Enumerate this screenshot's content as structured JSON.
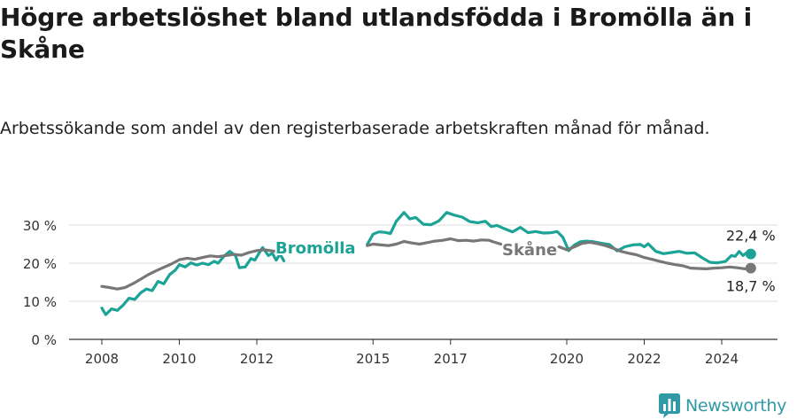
{
  "title": "Högre arbetslöshet bland utlandsfödda i Bromölla än i Skåne",
  "subtitle": "Arbetssökande som andel av den registerbaserade arbetskraften månad för månad.",
  "brand": {
    "name": "Newsworthy",
    "icon": "bar-chart-logo-icon",
    "color": "#2f9aa6"
  },
  "chart_data": {
    "type": "line",
    "ylim": [
      0,
      35
    ],
    "xlim": [
      2007.5,
      2025.3
    ],
    "y_ticks": [
      {
        "value": 0,
        "label": "0 %"
      },
      {
        "value": 10,
        "label": "10 %"
      },
      {
        "value": 20,
        "label": "20 %"
      },
      {
        "value": 30,
        "label": "30 %"
      }
    ],
    "x_ticks": [
      {
        "value": 2008,
        "label": "2008"
      },
      {
        "value": 2010,
        "label": "2010"
      },
      {
        "value": 2012,
        "label": "2012"
      },
      {
        "value": 2015,
        "label": "2015"
      },
      {
        "value": 2017,
        "label": "2017"
      },
      {
        "value": 2020,
        "label": "2020"
      },
      {
        "value": 2022,
        "label": "2022"
      },
      {
        "value": 2024,
        "label": "2024"
      }
    ],
    "series": [
      {
        "name": "Bromölla",
        "label": "Bromölla",
        "color": "#1aa396",
        "end_label": "22,4 %",
        "segments": [
          [
            [
              2008.0,
              8.2
            ],
            [
              2008.1,
              6.5
            ],
            [
              2008.25,
              8.0
            ],
            [
              2008.4,
              7.6
            ],
            [
              2008.55,
              9.0
            ],
            [
              2008.7,
              10.8
            ],
            [
              2008.85,
              10.5
            ],
            [
              2009.0,
              12.2
            ],
            [
              2009.15,
              13.2
            ],
            [
              2009.3,
              12.8
            ],
            [
              2009.45,
              15.2
            ],
            [
              2009.6,
              14.6
            ],
            [
              2009.75,
              17.0
            ],
            [
              2009.9,
              18.2
            ],
            [
              2010.0,
              19.6
            ],
            [
              2010.15,
              19.0
            ],
            [
              2010.3,
              20.1
            ],
            [
              2010.45,
              19.5
            ],
            [
              2010.6,
              20.0
            ],
            [
              2010.75,
              19.6
            ],
            [
              2010.9,
              20.5
            ],
            [
              2011.0,
              20.0
            ],
            [
              2011.15,
              21.8
            ],
            [
              2011.3,
              23.1
            ],
            [
              2011.45,
              22.0
            ],
            [
              2011.55,
              18.8
            ],
            [
              2011.7,
              19.0
            ],
            [
              2011.85,
              21.2
            ],
            [
              2011.95,
              20.8
            ],
            [
              2012.05,
              22.5
            ],
            [
              2012.15,
              24.1
            ],
            [
              2012.3,
              22.0
            ],
            [
              2012.4,
              22.6
            ],
            [
              2012.5,
              20.8
            ],
            [
              2012.6,
              22.4
            ],
            [
              2012.7,
              20.6
            ]
          ],
          [
            [
              2014.85,
              24.9
            ],
            [
              2015.0,
              27.6
            ],
            [
              2015.15,
              28.2
            ],
            [
              2015.3,
              28.1
            ],
            [
              2015.45,
              27.8
            ],
            [
              2015.6,
              31.0
            ],
            [
              2015.8,
              33.3
            ],
            [
              2015.95,
              31.6
            ],
            [
              2016.1,
              32.0
            ],
            [
              2016.3,
              30.2
            ],
            [
              2016.5,
              30.1
            ],
            [
              2016.7,
              31.1
            ],
            [
              2016.9,
              33.3
            ],
            [
              2017.1,
              32.6
            ],
            [
              2017.3,
              32.1
            ],
            [
              2017.5,
              30.9
            ],
            [
              2017.7,
              30.6
            ],
            [
              2017.9,
              31.0
            ],
            [
              2018.05,
              29.6
            ],
            [
              2018.2,
              29.9
            ],
            [
              2018.4,
              29.0
            ],
            [
              2018.6,
              28.2
            ],
            [
              2018.8,
              29.4
            ],
            [
              2019.0,
              28.0
            ],
            [
              2019.2,
              28.3
            ],
            [
              2019.4,
              27.9
            ],
            [
              2019.6,
              28.0
            ],
            [
              2019.75,
              28.3
            ],
            [
              2019.9,
              26.8
            ],
            [
              2020.05,
              23.3
            ],
            [
              2020.2,
              24.8
            ],
            [
              2020.35,
              25.6
            ],
            [
              2020.5,
              25.8
            ],
            [
              2020.7,
              25.6
            ],
            [
              2020.9,
              25.2
            ],
            [
              2021.1,
              24.9
            ],
            [
              2021.3,
              23.2
            ],
            [
              2021.5,
              24.3
            ],
            [
              2021.7,
              24.8
            ],
            [
              2021.9,
              24.9
            ],
            [
              2022.0,
              24.3
            ],
            [
              2022.1,
              25.1
            ],
            [
              2022.3,
              23.1
            ],
            [
              2022.5,
              22.5
            ],
            [
              2022.7,
              22.8
            ],
            [
              2022.9,
              23.1
            ],
            [
              2023.1,
              22.6
            ],
            [
              2023.3,
              22.7
            ],
            [
              2023.5,
              21.4
            ],
            [
              2023.7,
              20.2
            ],
            [
              2023.9,
              20.1
            ],
            [
              2024.1,
              20.5
            ],
            [
              2024.25,
              22.0
            ],
            [
              2024.35,
              21.8
            ],
            [
              2024.45,
              23.1
            ],
            [
              2024.55,
              22.0
            ],
            [
              2024.65,
              22.8
            ],
            [
              2024.75,
              22.4
            ]
          ]
        ]
      },
      {
        "name": "Skåne",
        "label": "Skåne",
        "color": "#777777",
        "end_label": "18,7 %",
        "segments": [
          [
            [
              2008.0,
              13.9
            ],
            [
              2008.2,
              13.6
            ],
            [
              2008.4,
              13.2
            ],
            [
              2008.6,
              13.6
            ],
            [
              2008.8,
              14.6
            ],
            [
              2009.0,
              15.8
            ],
            [
              2009.2,
              17.0
            ],
            [
              2009.4,
              18.0
            ],
            [
              2009.6,
              18.9
            ],
            [
              2009.8,
              19.8
            ],
            [
              2010.0,
              20.9
            ],
            [
              2010.2,
              21.3
            ],
            [
              2010.4,
              21.0
            ],
            [
              2010.6,
              21.5
            ],
            [
              2010.8,
              21.9
            ],
            [
              2011.0,
              21.7
            ],
            [
              2011.2,
              22.0
            ],
            [
              2011.4,
              22.3
            ],
            [
              2011.6,
              22.1
            ],
            [
              2011.8,
              22.8
            ],
            [
              2012.0,
              23.3
            ],
            [
              2012.2,
              23.5
            ],
            [
              2012.4,
              23.2
            ],
            [
              2012.6,
              23.0
            ],
            [
              2012.7,
              22.9
            ]
          ],
          [
            [
              2014.85,
              24.6
            ],
            [
              2015.0,
              25.0
            ],
            [
              2015.2,
              24.8
            ],
            [
              2015.4,
              24.6
            ],
            [
              2015.6,
              25.0
            ],
            [
              2015.8,
              25.7
            ],
            [
              2016.0,
              25.3
            ],
            [
              2016.2,
              25.0
            ],
            [
              2016.4,
              25.4
            ],
            [
              2016.6,
              25.8
            ],
            [
              2016.8,
              26.0
            ],
            [
              2017.0,
              26.4
            ],
            [
              2017.2,
              25.9
            ],
            [
              2017.4,
              26.0
            ],
            [
              2017.6,
              25.8
            ],
            [
              2017.8,
              26.1
            ],
            [
              2018.0,
              26.0
            ],
            [
              2018.1,
              25.6
            ],
            [
              2018.3,
              25.0
            ]
          ],
          [
            [
              2019.8,
              24.3
            ],
            [
              2020.0,
              23.5
            ],
            [
              2020.2,
              24.3
            ],
            [
              2020.4,
              25.2
            ],
            [
              2020.6,
              25.5
            ],
            [
              2020.8,
              25.1
            ],
            [
              2021.0,
              24.6
            ],
            [
              2021.2,
              23.9
            ],
            [
              2021.4,
              23.1
            ],
            [
              2021.6,
              22.6
            ],
            [
              2021.8,
              22.2
            ],
            [
              2022.0,
              21.5
            ],
            [
              2022.2,
              21.0
            ],
            [
              2022.4,
              20.5
            ],
            [
              2022.6,
              20.0
            ],
            [
              2022.8,
              19.6
            ],
            [
              2023.0,
              19.3
            ],
            [
              2023.2,
              18.7
            ],
            [
              2023.4,
              18.6
            ],
            [
              2023.6,
              18.5
            ],
            [
              2023.8,
              18.7
            ],
            [
              2024.0,
              18.8
            ],
            [
              2024.2,
              19.0
            ],
            [
              2024.4,
              18.8
            ],
            [
              2024.6,
              18.5
            ],
            [
              2024.75,
              18.7
            ]
          ]
        ]
      }
    ]
  }
}
